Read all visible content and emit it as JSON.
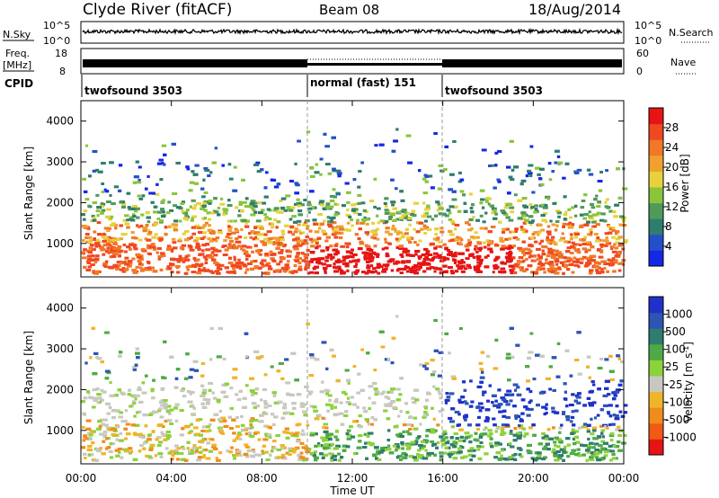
{
  "header": {
    "title_left": "Clyde River (fitACF)",
    "title_center": "Beam 08",
    "title_right": "18/Aug/2014"
  },
  "top_panels": {
    "nsky_label": "N.Sky",
    "nsky_ticks": [
      "10^5",
      "10^0"
    ],
    "nsearch_label": "N.Search",
    "nsearch_ticks": [
      "10^5",
      "10^0"
    ],
    "freq_label": "Freq.",
    "freq_unit": "[MHz]",
    "freq_ticks": [
      "18",
      "8"
    ],
    "nave_label": "Nave",
    "nave_ticks": [
      "60",
      "0"
    ],
    "cpid_label": "CPID",
    "cpid_segments": [
      {
        "label": "twofsound 3503",
        "start": 0,
        "end": 10
      },
      {
        "label": "normal (fast) 151",
        "start": 10,
        "end": 16
      },
      {
        "label": "twofsound 3503",
        "start": 16,
        "end": 24
      }
    ]
  },
  "chart_data": [
    {
      "type": "heatmap",
      "ylabel": "Slant Range [km]",
      "y_ticks": [
        "1000",
        "2000",
        "3000",
        "4000"
      ],
      "ylim": [
        180,
        4500
      ],
      "xlim": [
        0,
        24
      ],
      "colorbar": {
        "label": "Power [dB]",
        "ticks": [
          "4",
          "8",
          "12",
          "16",
          "20",
          "24",
          "28"
        ],
        "colors": [
          "#1428e6",
          "#2350c8",
          "#2f7d6e",
          "#4f9a5a",
          "#8ac43c",
          "#e6d23c",
          "#f0a030",
          "#f07828",
          "#f04820",
          "#e61414"
        ]
      }
    },
    {
      "type": "heatmap",
      "ylabel": "Slant Range [km]",
      "y_ticks": [
        "1000",
        "2000",
        "3000",
        "4000"
      ],
      "ylim": [
        180,
        4500
      ],
      "xlim": [
        0,
        24
      ],
      "xlabel": "Time UT",
      "x_ticks": [
        "00:00",
        "04:00",
        "08:00",
        "12:00",
        "16:00",
        "20:00",
        "00:00"
      ],
      "colorbar": {
        "label": "Velocity [m s",
        "label_sup": "-1",
        "label_close": "]",
        "ticks": [
          "1000",
          "500",
          "100",
          "25",
          "-25",
          "-100",
          "-500",
          "-1000"
        ],
        "colors": [
          "#1e32c8",
          "#2e54b4",
          "#2f7d6e",
          "#4faa46",
          "#8cd23c",
          "#c8c8c0",
          "#f0b428",
          "#f08c1e",
          "#f05a14",
          "#e61414"
        ]
      }
    }
  ]
}
